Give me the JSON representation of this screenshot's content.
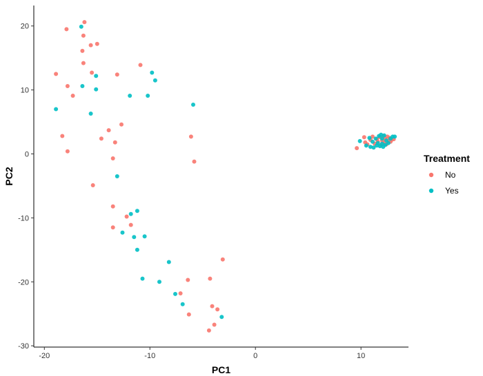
{
  "chart_data": {
    "type": "scatter",
    "xlabel": "PC1",
    "ylabel": "PC2",
    "xlim": [
      -21,
      14.5
    ],
    "ylim": [
      -30.2,
      23.2
    ],
    "xticks": [
      -20,
      -10,
      0,
      10
    ],
    "yticks": [
      -30,
      -20,
      -10,
      0,
      10,
      20
    ],
    "grid": false,
    "legend": {
      "title": "Treatment",
      "placement": "right"
    },
    "series": [
      {
        "name": "No",
        "color": "#F8766D",
        "points": [
          [
            -16.2,
            20.6
          ],
          [
            -17.9,
            19.5
          ],
          [
            -16.3,
            18.5
          ],
          [
            -15.0,
            17.2
          ],
          [
            -15.6,
            17.0
          ],
          [
            -16.4,
            16.1
          ],
          [
            -16.3,
            14.2
          ],
          [
            -10.9,
            13.9
          ],
          [
            -18.9,
            12.5
          ],
          [
            -15.5,
            12.7
          ],
          [
            -13.1,
            12.4
          ],
          [
            -17.8,
            10.6
          ],
          [
            -17.3,
            9.1
          ],
          [
            -12.7,
            4.6
          ],
          [
            -13.9,
            3.7
          ],
          [
            -18.3,
            2.8
          ],
          [
            -14.6,
            2.4
          ],
          [
            -6.1,
            2.7
          ],
          [
            -13.3,
            1.8
          ],
          [
            -17.8,
            0.4
          ],
          [
            -13.5,
            -0.7
          ],
          [
            -5.8,
            -1.2
          ],
          [
            -15.4,
            -4.9
          ],
          [
            -13.5,
            -8.2
          ],
          [
            -12.2,
            -9.8
          ],
          [
            -13.5,
            -11.5
          ],
          [
            -11.8,
            -11.1
          ],
          [
            -3.1,
            -16.5
          ],
          [
            -6.4,
            -19.7
          ],
          [
            -4.3,
            -19.5
          ],
          [
            -7.1,
            -21.8
          ],
          [
            -4.1,
            -23.8
          ],
          [
            -3.6,
            -24.3
          ],
          [
            -6.3,
            -25.1
          ],
          [
            -3.9,
            -26.7
          ],
          [
            -4.4,
            -27.6
          ],
          [
            9.6,
            0.9
          ],
          [
            10.3,
            2.6
          ],
          [
            10.4,
            1.8
          ],
          [
            10.6,
            1.5
          ],
          [
            10.9,
            2.2
          ],
          [
            11.1,
            2.7
          ],
          [
            11.3,
            1.6
          ],
          [
            11.5,
            2.3
          ],
          [
            11.6,
            1.9
          ],
          [
            11.8,
            2.6
          ],
          [
            11.9,
            1.4
          ],
          [
            12.0,
            2.1
          ],
          [
            12.1,
            2.8
          ],
          [
            12.2,
            1.8
          ],
          [
            12.3,
            2.4
          ],
          [
            12.4,
            1.5
          ],
          [
            12.5,
            2.7
          ],
          [
            12.6,
            2.0
          ],
          [
            12.7,
            2.5
          ],
          [
            12.8,
            1.9
          ],
          [
            12.9,
            2.2
          ],
          [
            13.1,
            2.3
          ]
        ]
      },
      {
        "name": "Yes",
        "color": "#00BFC4",
        "points": [
          [
            -16.5,
            19.9
          ],
          [
            -18.9,
            7.0
          ],
          [
            -16.4,
            10.6
          ],
          [
            -15.1,
            12.2
          ],
          [
            -15.1,
            10.1
          ],
          [
            -15.6,
            6.3
          ],
          [
            -11.9,
            9.1
          ],
          [
            -9.8,
            12.7
          ],
          [
            -9.5,
            11.5
          ],
          [
            -10.2,
            9.1
          ],
          [
            -5.9,
            7.7
          ],
          [
            -13.1,
            -3.5
          ],
          [
            -11.2,
            -8.9
          ],
          [
            -11.8,
            -9.4
          ],
          [
            -12.6,
            -12.3
          ],
          [
            -10.5,
            -12.9
          ],
          [
            -11.5,
            -13.0
          ],
          [
            -11.2,
            -15.0
          ],
          [
            -8.2,
            -16.9
          ],
          [
            -10.7,
            -19.5
          ],
          [
            -9.1,
            -20.0
          ],
          [
            -7.6,
            -21.9
          ],
          [
            -6.9,
            -23.5
          ],
          [
            -3.2,
            -25.5
          ],
          [
            9.9,
            2.0
          ],
          [
            10.5,
            1.3
          ],
          [
            10.8,
            2.5
          ],
          [
            10.9,
            1.1
          ],
          [
            11.1,
            1.9
          ],
          [
            11.2,
            1.0
          ],
          [
            11.4,
            2.4
          ],
          [
            11.5,
            1.3
          ],
          [
            11.6,
            1.7
          ],
          [
            11.7,
            2.8
          ],
          [
            11.8,
            1.2
          ],
          [
            11.9,
            3.0
          ],
          [
            12.0,
            1.6
          ],
          [
            12.0,
            2.4
          ],
          [
            12.1,
            1.1
          ],
          [
            12.2,
            2.9
          ],
          [
            12.3,
            1.4
          ],
          [
            12.4,
            2.1
          ],
          [
            12.6,
            1.7
          ],
          [
            12.8,
            2.4
          ],
          [
            13.0,
            2.7
          ],
          [
            13.2,
            2.7
          ]
        ]
      }
    ]
  }
}
